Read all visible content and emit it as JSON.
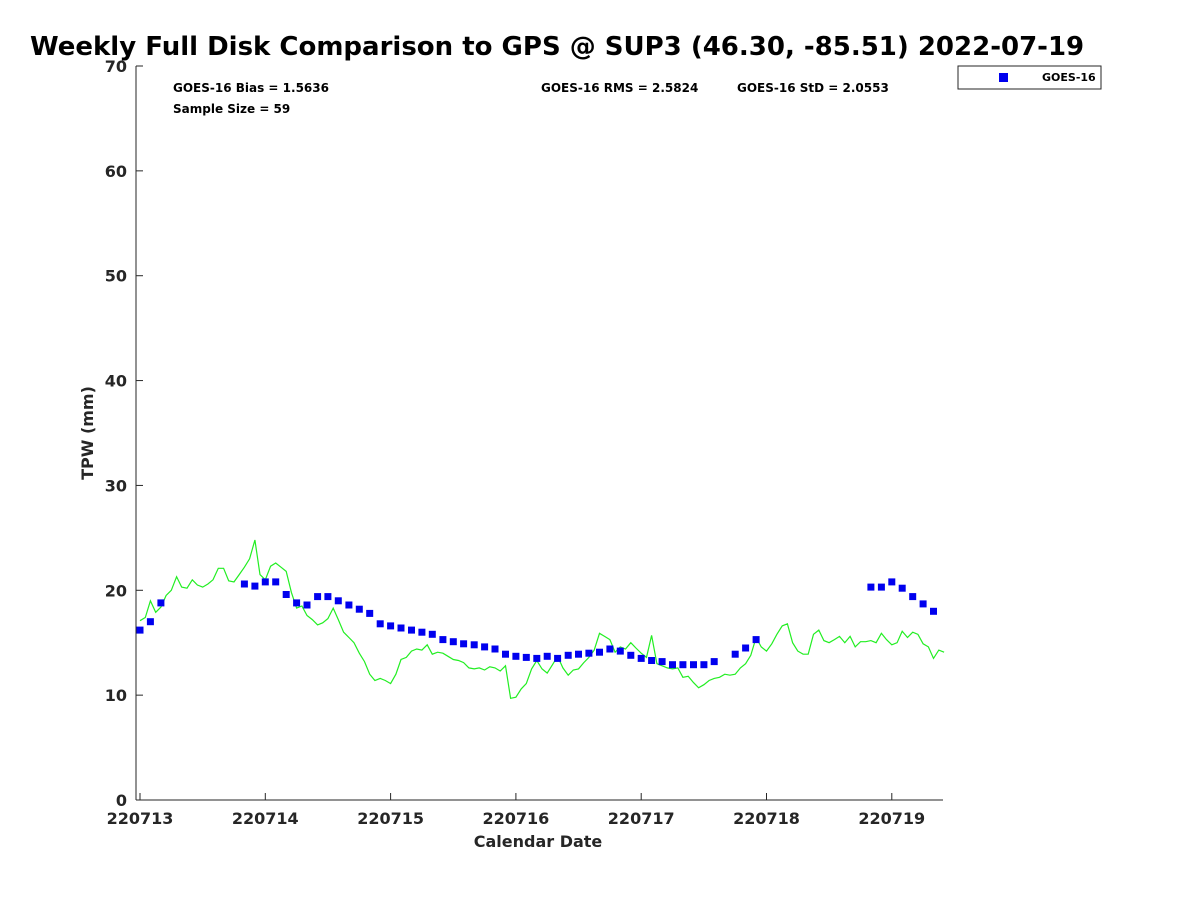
{
  "chart_data": {
    "type": "scatter",
    "title": "Weekly Full Disk Comparison to GPS @ SUP3 (46.30, -85.51) 2022-07-19",
    "xlabel": "Calendar Date",
    "ylabel": "TPW (mm)",
    "xlim": [
      0,
      6.6
    ],
    "ylim": [
      0,
      70
    ],
    "x_ticks": [
      0,
      1,
      2,
      3,
      4,
      5,
      6
    ],
    "x_tick_labels": [
      "220713",
      "220714",
      "220715",
      "220716",
      "220717",
      "220718",
      "220719"
    ],
    "y_ticks": [
      0,
      10,
      20,
      30,
      40,
      50,
      60,
      70
    ],
    "y_tick_labels": [
      "0",
      "10",
      "20",
      "30",
      "40",
      "50",
      "60",
      "70"
    ],
    "grid": false,
    "legend_position": "top-right",
    "stats": {
      "bias": "GOES-16 Bias = 1.5636",
      "sample_size": "Sample Size = 59",
      "rms": "GOES-16 RMS = 2.5824",
      "std": "GOES-16 StD = 2.0553"
    },
    "series": [
      {
        "name": "GOES-16",
        "kind": "scatter",
        "marker": "square",
        "color": "#0000ee",
        "points": [
          [
            0.0,
            16.2
          ],
          [
            0.083,
            17.0
          ],
          [
            0.167,
            18.8
          ],
          [
            0.833,
            20.6
          ],
          [
            0.917,
            20.4
          ],
          [
            1.0,
            20.8
          ],
          [
            1.083,
            20.8
          ],
          [
            1.167,
            19.6
          ],
          [
            1.25,
            18.8
          ],
          [
            1.333,
            18.6
          ],
          [
            1.417,
            19.4
          ],
          [
            1.5,
            19.4
          ],
          [
            1.583,
            19.0
          ],
          [
            1.667,
            18.6
          ],
          [
            1.75,
            18.2
          ],
          [
            1.833,
            17.8
          ],
          [
            1.917,
            16.8
          ],
          [
            2.0,
            16.6
          ],
          [
            2.083,
            16.4
          ],
          [
            2.167,
            16.2
          ],
          [
            2.25,
            16.0
          ],
          [
            2.333,
            15.8
          ],
          [
            2.417,
            15.3
          ],
          [
            2.5,
            15.1
          ],
          [
            2.583,
            14.9
          ],
          [
            2.667,
            14.8
          ],
          [
            2.75,
            14.6
          ],
          [
            2.833,
            14.4
          ],
          [
            2.917,
            13.9
          ],
          [
            3.0,
            13.7
          ],
          [
            3.083,
            13.6
          ],
          [
            3.167,
            13.5
          ],
          [
            3.25,
            13.7
          ],
          [
            3.333,
            13.5
          ],
          [
            3.417,
            13.8
          ],
          [
            3.5,
            13.9
          ],
          [
            3.583,
            14.0
          ],
          [
            3.667,
            14.1
          ],
          [
            3.75,
            14.4
          ],
          [
            3.833,
            14.2
          ],
          [
            3.917,
            13.8
          ],
          [
            4.0,
            13.5
          ],
          [
            4.083,
            13.3
          ],
          [
            4.167,
            13.2
          ],
          [
            4.25,
            12.9
          ],
          [
            4.333,
            12.9
          ],
          [
            4.417,
            12.9
          ],
          [
            4.5,
            12.9
          ],
          [
            4.583,
            13.2
          ],
          [
            4.75,
            13.9
          ],
          [
            4.833,
            14.5
          ],
          [
            4.917,
            15.3
          ],
          [
            5.833,
            20.3
          ],
          [
            5.917,
            20.3
          ],
          [
            6.0,
            20.8
          ],
          [
            6.083,
            20.2
          ],
          [
            6.167,
            19.4
          ],
          [
            6.25,
            18.7
          ],
          [
            6.333,
            18.0
          ]
        ]
      },
      {
        "kind": "line",
        "color": "#22ee22",
        "points": [
          [
            0.0,
            17.1
          ],
          [
            0.042,
            17.4
          ],
          [
            0.083,
            19.0
          ],
          [
            0.125,
            17.9
          ],
          [
            0.167,
            18.4
          ],
          [
            0.208,
            19.5
          ],
          [
            0.25,
            20.0
          ],
          [
            0.292,
            21.3
          ],
          [
            0.333,
            20.3
          ],
          [
            0.375,
            20.2
          ],
          [
            0.417,
            21.0
          ],
          [
            0.458,
            20.5
          ],
          [
            0.5,
            20.3
          ],
          [
            0.542,
            20.6
          ],
          [
            0.583,
            21.0
          ],
          [
            0.625,
            22.1
          ],
          [
            0.667,
            22.1
          ],
          [
            0.708,
            20.9
          ],
          [
            0.75,
            20.8
          ],
          [
            0.792,
            21.5
          ],
          [
            0.833,
            22.2
          ],
          [
            0.875,
            23.0
          ],
          [
            0.917,
            24.8
          ],
          [
            0.958,
            21.5
          ],
          [
            1.0,
            21.0
          ],
          [
            1.042,
            22.3
          ],
          [
            1.083,
            22.6
          ],
          [
            1.125,
            22.2
          ],
          [
            1.167,
            21.8
          ],
          [
            1.208,
            19.8
          ],
          [
            1.25,
            18.3
          ],
          [
            1.292,
            18.5
          ],
          [
            1.333,
            17.6
          ],
          [
            1.375,
            17.2
          ],
          [
            1.417,
            16.7
          ],
          [
            1.458,
            16.9
          ],
          [
            1.5,
            17.3
          ],
          [
            1.542,
            18.3
          ],
          [
            1.583,
            17.2
          ],
          [
            1.625,
            16.0
          ],
          [
            1.667,
            15.5
          ],
          [
            1.708,
            15.0
          ],
          [
            1.75,
            14.0
          ],
          [
            1.792,
            13.2
          ],
          [
            1.833,
            12.0
          ],
          [
            1.875,
            11.4
          ],
          [
            1.917,
            11.6
          ],
          [
            1.958,
            11.4
          ],
          [
            2.0,
            11.1
          ],
          [
            2.042,
            12.0
          ],
          [
            2.083,
            13.4
          ],
          [
            2.125,
            13.6
          ],
          [
            2.167,
            14.2
          ],
          [
            2.208,
            14.4
          ],
          [
            2.25,
            14.3
          ],
          [
            2.292,
            14.8
          ],
          [
            2.333,
            13.9
          ],
          [
            2.375,
            14.1
          ],
          [
            2.417,
            14.0
          ],
          [
            2.458,
            13.7
          ],
          [
            2.5,
            13.4
          ],
          [
            2.542,
            13.3
          ],
          [
            2.583,
            13.1
          ],
          [
            2.625,
            12.6
          ],
          [
            2.667,
            12.5
          ],
          [
            2.708,
            12.6
          ],
          [
            2.75,
            12.4
          ],
          [
            2.792,
            12.7
          ],
          [
            2.833,
            12.6
          ],
          [
            2.875,
            12.3
          ],
          [
            2.917,
            12.8
          ],
          [
            2.958,
            9.7
          ],
          [
            3.0,
            9.8
          ],
          [
            3.042,
            10.6
          ],
          [
            3.083,
            11.1
          ],
          [
            3.125,
            12.5
          ],
          [
            3.167,
            13.3
          ],
          [
            3.208,
            12.5
          ],
          [
            3.25,
            12.1
          ],
          [
            3.292,
            12.9
          ],
          [
            3.333,
            13.7
          ],
          [
            3.375,
            12.6
          ],
          [
            3.417,
            11.9
          ],
          [
            3.458,
            12.4
          ],
          [
            3.5,
            12.5
          ],
          [
            3.542,
            13.1
          ],
          [
            3.583,
            13.6
          ],
          [
            3.625,
            14.3
          ],
          [
            3.667,
            15.9
          ],
          [
            3.708,
            15.6
          ],
          [
            3.75,
            15.3
          ],
          [
            3.792,
            14.1
          ],
          [
            3.833,
            14.6
          ],
          [
            3.875,
            14.4
          ],
          [
            3.917,
            15.0
          ],
          [
            3.958,
            14.5
          ],
          [
            4.0,
            14.0
          ],
          [
            4.042,
            13.6
          ],
          [
            4.083,
            15.7
          ],
          [
            4.125,
            13.0
          ],
          [
            4.167,
            12.8
          ],
          [
            4.208,
            12.6
          ],
          [
            4.25,
            12.5
          ],
          [
            4.292,
            12.6
          ],
          [
            4.333,
            11.7
          ],
          [
            4.375,
            11.8
          ],
          [
            4.417,
            11.2
          ],
          [
            4.458,
            10.7
          ],
          [
            4.5,
            11.0
          ],
          [
            4.542,
            11.4
          ],
          [
            4.583,
            11.6
          ],
          [
            4.625,
            11.7
          ],
          [
            4.667,
            12.0
          ],
          [
            4.708,
            11.9
          ],
          [
            4.75,
            12.0
          ],
          [
            4.792,
            12.6
          ],
          [
            4.833,
            13.0
          ],
          [
            4.875,
            13.8
          ],
          [
            4.917,
            15.5
          ],
          [
            4.958,
            14.6
          ],
          [
            5.0,
            14.2
          ],
          [
            5.042,
            14.9
          ],
          [
            5.083,
            15.8
          ],
          [
            5.125,
            16.6
          ],
          [
            5.167,
            16.8
          ],
          [
            5.208,
            15.0
          ],
          [
            5.25,
            14.2
          ],
          [
            5.292,
            13.9
          ],
          [
            5.333,
            13.9
          ],
          [
            5.375,
            15.8
          ],
          [
            5.417,
            16.2
          ],
          [
            5.458,
            15.2
          ],
          [
            5.5,
            15.0
          ],
          [
            5.542,
            15.3
          ],
          [
            5.583,
            15.6
          ],
          [
            5.625,
            15.0
          ],
          [
            5.667,
            15.6
          ],
          [
            5.708,
            14.6
          ],
          [
            5.75,
            15.1
          ],
          [
            5.792,
            15.1
          ],
          [
            5.833,
            15.2
          ],
          [
            5.875,
            15.0
          ],
          [
            5.917,
            15.9
          ],
          [
            5.958,
            15.3
          ],
          [
            6.0,
            14.8
          ],
          [
            6.042,
            15.0
          ],
          [
            6.083,
            16.1
          ],
          [
            6.125,
            15.5
          ],
          [
            6.167,
            16.0
          ],
          [
            6.208,
            15.8
          ],
          [
            6.25,
            14.9
          ],
          [
            6.292,
            14.6
          ],
          [
            6.333,
            13.5
          ],
          [
            6.375,
            14.3
          ],
          [
            6.417,
            14.1
          ]
        ]
      }
    ]
  }
}
